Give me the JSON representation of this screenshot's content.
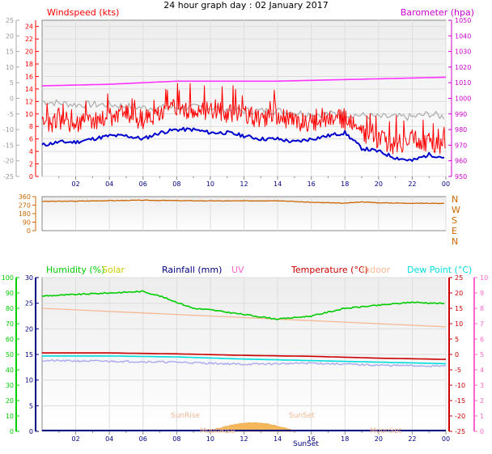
{
  "title": "24 hour graph day : 02 January 2017",
  "x_ticks": [
    "02",
    "04",
    "06",
    "08",
    "10",
    "12",
    "14",
    "16",
    "18",
    "20",
    "22",
    "00"
  ],
  "colors": {
    "wind": "#ff0000",
    "gust": "#ff0000",
    "avg": "#0000cc",
    "baro": "#ff33ff",
    "grey": "#b0b0b0",
    "dir": "#cc6600",
    "humidity": "#00cc00",
    "solar": "#cccc00",
    "rain": "#000080",
    "uv": "#ff66cc",
    "temp": "#cc0000",
    "indoor": "#f5b895",
    "dew": "#00dddd",
    "axis_left_top": "#ff0000",
    "axis_right_top": "#cc00cc",
    "axis_dir": "#cc6600",
    "axis_green": "#00cc00",
    "axis_navy": "#000080",
    "axis_red": "#cc0000",
    "axis_pink": "#ff66cc"
  },
  "labels": {
    "windspeed": "Windspeed (kts)",
    "barometer": "Barometer (hpa)",
    "humidity": "Humidity (%)",
    "solar": "Solar",
    "rainfall": "Rainfall (mm)",
    "uv": "UV",
    "temperature": "Temperature (°C)",
    "indoor": "Indoor",
    "dewpoint": "Dew Point (°C)",
    "sunrise": "SunRise",
    "sunset": "SunSet",
    "moonset": "MoonSet",
    "moonrise": "MoonRise",
    "sunset_axis": "SunSet"
  },
  "chart_data": [
    {
      "type": "line",
      "title": "24 hour graph day : 02 January 2017",
      "x_range_hours": [
        0,
        24
      ],
      "left_axis": {
        "label": "Windspeed (kts)",
        "ticks": [
          24,
          22,
          20,
          18,
          16,
          14,
          12,
          10,
          8,
          6,
          4,
          2,
          0
        ],
        "ylim": [
          0,
          25
        ]
      },
      "outer_left_axis": {
        "ticks": [
          25,
          20,
          15,
          10,
          5,
          0,
          -5,
          -10,
          -15,
          -20,
          -25
        ]
      },
      "right_axis": {
        "label": "Barometer (hpa)",
        "ticks": [
          1050,
          1040,
          1030,
          1020,
          1010,
          1000,
          990,
          980,
          970,
          960,
          950
        ],
        "ylim": [
          950,
          1050
        ]
      },
      "series": [
        {
          "name": "Barometer (hpa)",
          "x": [
            0,
            2,
            4,
            6,
            8,
            10,
            12,
            14,
            16,
            18,
            20,
            22,
            24
          ],
          "values": [
            1008,
            1008.5,
            1009,
            1010,
            1011,
            1011,
            1011,
            1011,
            1011.5,
            1012,
            1012.5,
            1013,
            1013.5
          ]
        },
        {
          "name": "Windspeed (kts)",
          "x": [
            0,
            1,
            2,
            3,
            4,
            5,
            6,
            7,
            8,
            9,
            10,
            11,
            12,
            13,
            14,
            15,
            16,
            17,
            18,
            19,
            20,
            21,
            22,
            23,
            24
          ],
          "values": [
            8,
            9,
            8.5,
            9,
            9.5,
            10,
            9,
            10,
            11,
            10,
            11,
            10,
            10,
            9,
            9.5,
            9,
            8.5,
            9.5,
            9,
            7,
            6,
            5,
            6,
            5.5,
            5
          ]
        },
        {
          "name": "Gust",
          "x": [
            0,
            2,
            4,
            6,
            8,
            10,
            12,
            14,
            16,
            18,
            20,
            22,
            24
          ],
          "values": [
            11,
            12,
            13,
            13,
            14.5,
            15,
            14,
            13,
            12,
            11,
            9,
            9,
            8
          ]
        },
        {
          "name": "Average",
          "x": [
            0,
            1,
            2,
            3,
            4,
            5,
            6,
            7,
            8,
            9,
            10,
            11,
            12,
            13,
            14,
            15,
            16,
            17,
            18,
            19,
            20,
            21,
            22,
            23,
            24
          ],
          "values": [
            5,
            5.5,
            5.5,
            6,
            6.5,
            6.5,
            6,
            7,
            7.5,
            7.5,
            7,
            7,
            6.5,
            6,
            6,
            5.5,
            6,
            6.5,
            7,
            4.5,
            4,
            3,
            2.5,
            3.5,
            3
          ]
        },
        {
          "name": "Grey trace",
          "x": [
            0,
            2,
            4,
            6,
            8,
            10,
            12,
            14,
            16,
            18,
            20,
            22,
            23,
            24
          ],
          "values": [
            12,
            11.5,
            11.5,
            11,
            11,
            11,
            10.5,
            10.5,
            10,
            10,
            9.5,
            9.5,
            10,
            9.5
          ]
        }
      ]
    },
    {
      "type": "line",
      "left_axis": {
        "ticks": [
          360,
          270,
          180,
          90,
          0
        ],
        "ylim": [
          0,
          360
        ]
      },
      "right_axis": {
        "ticks": [
          "N",
          "W",
          "S",
          "E",
          "N"
        ]
      },
      "series": [
        {
          "name": "Wind direction",
          "x": [
            0,
            2,
            4,
            6,
            8,
            10,
            12,
            14,
            16,
            18,
            19,
            20,
            22,
            24
          ],
          "values": [
            310,
            312,
            318,
            322,
            318,
            315,
            315,
            318,
            300,
            290,
            305,
            295,
            290,
            290
          ]
        }
      ]
    },
    {
      "type": "line",
      "left_axis_outer": {
        "ticks": [
          100,
          90,
          80,
          70,
          60,
          50,
          40,
          30,
          20,
          10,
          0
        ]
      },
      "left_axis_inner": {
        "ticks": [
          30,
          25,
          20,
          15,
          10,
          5,
          0
        ]
      },
      "right_axis_inner": {
        "ticks": [
          25,
          20,
          15,
          10,
          5,
          0,
          -5,
          -10,
          -15,
          -20,
          -25
        ]
      },
      "right_axis_outer": {
        "ticks": [
          10,
          9,
          8,
          7,
          6,
          5,
          4,
          3,
          2,
          1,
          0
        ]
      },
      "series": [
        {
          "name": "Humidity (%)",
          "x": [
            0,
            2,
            4,
            6,
            7,
            8,
            9,
            10,
            12,
            14,
            16,
            18,
            20,
            22,
            24
          ],
          "values": [
            88,
            89,
            90,
            91,
            88,
            84,
            80,
            79,
            76,
            73,
            75,
            80,
            82,
            84,
            83
          ]
        },
        {
          "name": "Temperature (°C)",
          "x": [
            0,
            4,
            8,
            12,
            16,
            20,
            24
          ],
          "values": [
            0.5,
            0.5,
            0.2,
            -0.3,
            -0.6,
            -1.2,
            -1.6
          ]
        },
        {
          "name": "Indoor",
          "x": [
            0,
            4,
            8,
            12,
            16,
            20,
            24
          ],
          "values": [
            15,
            14,
            13,
            12,
            11,
            10,
            9
          ]
        },
        {
          "name": "Dew Point (°C)",
          "x": [
            0,
            4,
            8,
            12,
            16,
            20,
            24
          ],
          "values": [
            -0.5,
            -0.5,
            -0.8,
            -1.5,
            -2.0,
            -2.5,
            -3.0
          ]
        },
        {
          "name": "Grey-blue trace",
          "x": [
            0,
            4,
            8,
            12,
            16,
            20,
            24
          ],
          "values": [
            -2,
            -2.2,
            -2.5,
            -3.2,
            -2.8,
            -3.5,
            -3.8
          ]
        },
        {
          "name": "Solar",
          "x": [
            9.6,
            10.5,
            11.5,
            12.5,
            13.5,
            14.5,
            15
          ],
          "values": [
            0,
            2,
            5,
            6,
            5,
            2,
            0
          ]
        }
      ]
    }
  ]
}
